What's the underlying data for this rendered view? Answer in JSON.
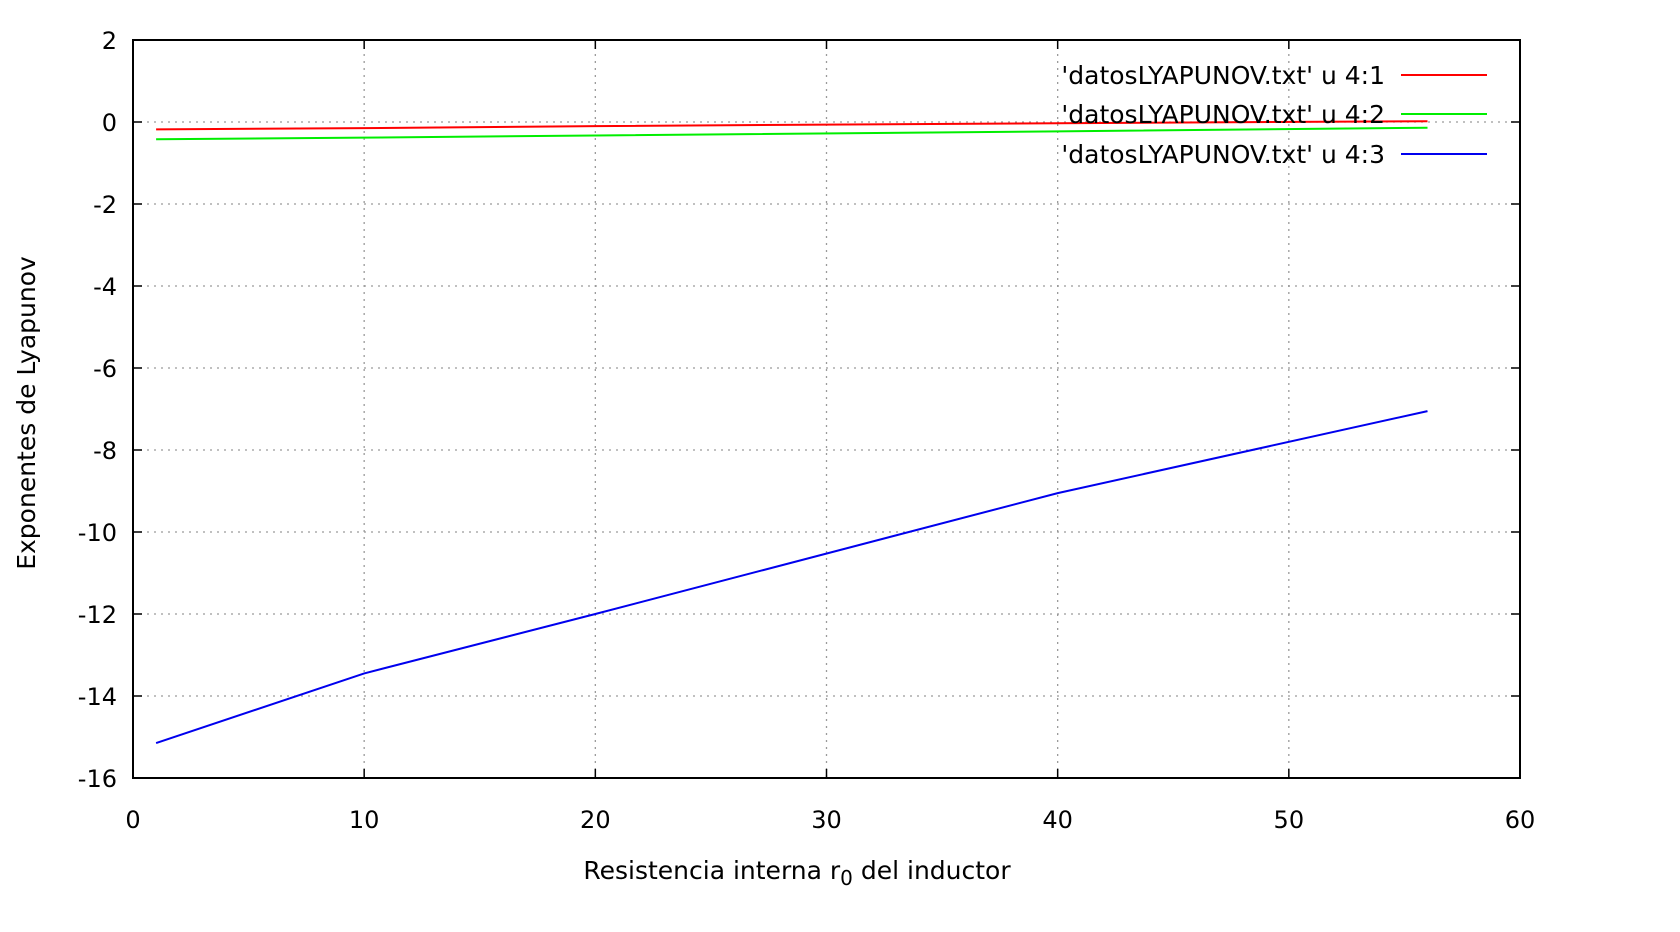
{
  "chart_data": {
    "type": "line",
    "title": "",
    "xlabel": {
      "main": "Resistencia interna r",
      "subscript": "0",
      "tail": " del inductor"
    },
    "ylabel": "Exponentes de Lyapunov",
    "xlim": [
      0,
      60
    ],
    "ylim": [
      -16,
      2
    ],
    "xticks": [
      0,
      10,
      20,
      30,
      40,
      50,
      60
    ],
    "yticks": [
      2,
      0,
      -2,
      -4,
      -6,
      -8,
      -10,
      -12,
      -14,
      -16
    ],
    "grid": true,
    "legend_position": "top-right",
    "series": [
      {
        "name": "'datosLYAPUNOV.txt' u 4:1",
        "color": "#ff0000",
        "x": [
          1,
          10,
          20,
          40,
          56
        ],
        "y": [
          -0.18,
          -0.15,
          -0.1,
          -0.03,
          0.02
        ]
      },
      {
        "name": "'datosLYAPUNOV.txt' u 4:2",
        "color": "#00ee00",
        "x": [
          1,
          10,
          20,
          40,
          56
        ],
        "y": [
          -0.42,
          -0.38,
          -0.33,
          -0.23,
          -0.14
        ]
      },
      {
        "name": "'datosLYAPUNOV.txt' u 4:3",
        "color": "#0000ee",
        "x": [
          1,
          10,
          20,
          40,
          56
        ],
        "y": [
          -15.15,
          -13.45,
          -12.0,
          -9.05,
          -7.05
        ]
      }
    ]
  }
}
